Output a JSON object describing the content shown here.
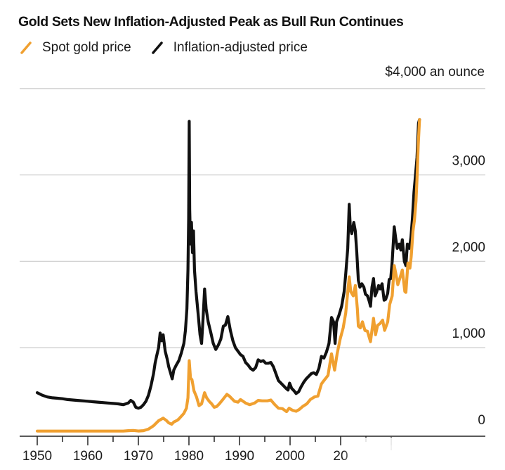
{
  "chart_data": {
    "type": "line",
    "title": "Gold Sets New Inflation-Adjusted Peak as Bull Run Continues",
    "unit_label": "$4,000 an ounce",
    "xlabel": "",
    "ylabel": "",
    "xlim": [
      1950,
      2025.7
    ],
    "ylim": [
      0,
      4000
    ],
    "grid": true,
    "legend_position": "top-left",
    "y_ticks": [
      {
        "value": 0,
        "label": "0"
      },
      {
        "value": 1000,
        "label": "1,000"
      },
      {
        "value": 2000,
        "label": "2,000"
      },
      {
        "value": 3000,
        "label": "3,000"
      },
      {
        "value": 4000,
        "label": ""
      }
    ],
    "x_ticks": [
      {
        "value": 1950,
        "label": "1950"
      },
      {
        "value": 1960,
        "label": "1960"
      },
      {
        "value": 1970,
        "label": "1970"
      },
      {
        "value": 1980,
        "label": "1980"
      },
      {
        "value": 1990,
        "label": "1990"
      },
      {
        "value": 2000,
        "label": "2000"
      },
      {
        "value": 2010,
        "label": "20"
      },
      {
        "value": 2020,
        "label": ""
      }
    ],
    "x_minor_ticks": [
      1955,
      1965,
      1975,
      1985,
      1995,
      2005,
      2015
    ],
    "series": [
      {
        "name": "Inflation-adjusted price",
        "color": "#111111",
        "points": [
          [
            1950,
            480
          ],
          [
            1951,
            450
          ],
          [
            1952,
            430
          ],
          [
            1953,
            420
          ],
          [
            1954,
            415
          ],
          [
            1955,
            410
          ],
          [
            1956,
            400
          ],
          [
            1957,
            395
          ],
          [
            1958,
            390
          ],
          [
            1959,
            385
          ],
          [
            1960,
            380
          ],
          [
            1961,
            375
          ],
          [
            1962,
            370
          ],
          [
            1963,
            365
          ],
          [
            1964,
            360
          ],
          [
            1965,
            355
          ],
          [
            1966,
            350
          ],
          [
            1967,
            340
          ],
          [
            1968,
            360
          ],
          [
            1968.5,
            390
          ],
          [
            1969,
            370
          ],
          [
            1969.5,
            310
          ],
          [
            1970,
            300
          ],
          [
            1970.5,
            310
          ],
          [
            1971,
            340
          ],
          [
            1971.5,
            380
          ],
          [
            1972,
            450
          ],
          [
            1972.5,
            560
          ],
          [
            1973,
            700
          ],
          [
            1973.3,
            820
          ],
          [
            1973.6,
            900
          ],
          [
            1974,
            1000
          ],
          [
            1974.3,
            1170
          ],
          [
            1974.6,
            1080
          ],
          [
            1974.9,
            1150
          ],
          [
            1975.3,
            960
          ],
          [
            1975.7,
            870
          ],
          [
            1976,
            780
          ],
          [
            1976.4,
            700
          ],
          [
            1976.7,
            640
          ],
          [
            1977,
            740
          ],
          [
            1977.5,
            800
          ],
          [
            1978,
            850
          ],
          [
            1978.5,
            940
          ],
          [
            1979,
            1050
          ],
          [
            1979.3,
            1200
          ],
          [
            1979.6,
            1450
          ],
          [
            1979.8,
            1900
          ],
          [
            1979.95,
            2500
          ],
          [
            1980.05,
            3620
          ],
          [
            1980.15,
            2600
          ],
          [
            1980.3,
            2200
          ],
          [
            1980.5,
            2450
          ],
          [
            1980.7,
            2100
          ],
          [
            1980.9,
            2350
          ],
          [
            1981.1,
            1900
          ],
          [
            1981.4,
            1650
          ],
          [
            1981.8,
            1400
          ],
          [
            1982.2,
            1150
          ],
          [
            1982.5,
            1050
          ],
          [
            1982.8,
            1350
          ],
          [
            1983.1,
            1680
          ],
          [
            1983.4,
            1450
          ],
          [
            1983.8,
            1300
          ],
          [
            1984.3,
            1180
          ],
          [
            1984.8,
            1050
          ],
          [
            1985.3,
            980
          ],
          [
            1985.8,
            1030
          ],
          [
            1986.3,
            1100
          ],
          [
            1986.8,
            1250
          ],
          [
            1987.2,
            1260
          ],
          [
            1987.7,
            1360
          ],
          [
            1988.2,
            1200
          ],
          [
            1988.7,
            1080
          ],
          [
            1989.2,
            1000
          ],
          [
            1989.7,
            960
          ],
          [
            1990.2,
            920
          ],
          [
            1990.7,
            900
          ],
          [
            1991.2,
            830
          ],
          [
            1991.7,
            800
          ],
          [
            1992.2,
            760
          ],
          [
            1992.7,
            740
          ],
          [
            1993.2,
            770
          ],
          [
            1993.7,
            860
          ],
          [
            1994.2,
            840
          ],
          [
            1994.7,
            850
          ],
          [
            1995.2,
            820
          ],
          [
            1995.7,
            820
          ],
          [
            1996.2,
            830
          ],
          [
            1996.7,
            780
          ],
          [
            1997.2,
            700
          ],
          [
            1997.7,
            620
          ],
          [
            1998.2,
            590
          ],
          [
            1998.7,
            560
          ],
          [
            1999.2,
            530
          ],
          [
            1999.6,
            510
          ],
          [
            1999.9,
            590
          ],
          [
            2000.3,
            530
          ],
          [
            2000.8,
            500
          ],
          [
            2001.2,
            470
          ],
          [
            2001.7,
            490
          ],
          [
            2002.2,
            550
          ],
          [
            2002.7,
            600
          ],
          [
            2003.2,
            640
          ],
          [
            2003.7,
            670
          ],
          [
            2004.2,
            700
          ],
          [
            2004.7,
            710
          ],
          [
            2005.2,
            690
          ],
          [
            2005.7,
            760
          ],
          [
            2006.2,
            900
          ],
          [
            2006.7,
            880
          ],
          [
            2007.2,
            950
          ],
          [
            2007.7,
            1050
          ],
          [
            2008.2,
            1350
          ],
          [
            2008.6,
            1300
          ],
          [
            2008.9,
            1050
          ],
          [
            2009.2,
            1300
          ],
          [
            2009.7,
            1380
          ],
          [
            2010.2,
            1480
          ],
          [
            2010.7,
            1650
          ],
          [
            2011.0,
            1850
          ],
          [
            2011.4,
            2150
          ],
          [
            2011.7,
            2660
          ],
          [
            2011.9,
            2400
          ],
          [
            2012.2,
            2320
          ],
          [
            2012.6,
            2450
          ],
          [
            2012.9,
            2350
          ],
          [
            2013.2,
            2100
          ],
          [
            2013.5,
            1780
          ],
          [
            2013.8,
            1700
          ],
          [
            2014.2,
            1740
          ],
          [
            2014.6,
            1700
          ],
          [
            2014.9,
            1620
          ],
          [
            2015.3,
            1600
          ],
          [
            2015.7,
            1530
          ],
          [
            2015.9,
            1480
          ],
          [
            2016.2,
            1700
          ],
          [
            2016.5,
            1800
          ],
          [
            2016.8,
            1600
          ],
          [
            2017.1,
            1640
          ],
          [
            2017.5,
            1720
          ],
          [
            2017.8,
            1680
          ],
          [
            2018.2,
            1740
          ],
          [
            2018.6,
            1550
          ],
          [
            2018.9,
            1560
          ],
          [
            2019.3,
            1630
          ],
          [
            2019.6,
            1790
          ],
          [
            2019.9,
            1800
          ],
          [
            2020.2,
            2000
          ],
          [
            2020.6,
            2400
          ],
          [
            2020.9,
            2260
          ],
          [
            2021.2,
            2150
          ],
          [
            2021.6,
            2200
          ],
          [
            2021.9,
            2130
          ],
          [
            2022.2,
            2250
          ],
          [
            2022.6,
            2000
          ],
          [
            2022.9,
            1950
          ],
          [
            2023.2,
            2200
          ],
          [
            2023.6,
            2150
          ],
          [
            2023.9,
            2280
          ],
          [
            2024.2,
            2500
          ],
          [
            2024.5,
            2800
          ],
          [
            2024.8,
            3000
          ],
          [
            2025.1,
            3200
          ],
          [
            2025.4,
            3600
          ],
          [
            2025.6,
            3640
          ]
        ]
      },
      {
        "name": "Spot gold price",
        "color": "#f0a030",
        "points": [
          [
            1950,
            35
          ],
          [
            1955,
            35
          ],
          [
            1960,
            35
          ],
          [
            1965,
            35
          ],
          [
            1967,
            35
          ],
          [
            1968,
            40
          ],
          [
            1969,
            42
          ],
          [
            1970,
            36
          ],
          [
            1971,
            40
          ],
          [
            1972,
            58
          ],
          [
            1973,
            97
          ],
          [
            1974,
            155
          ],
          [
            1974.9,
            185
          ],
          [
            1975.5,
            160
          ],
          [
            1976,
            130
          ],
          [
            1976.6,
            115
          ],
          [
            1977,
            140
          ],
          [
            1977.7,
            160
          ],
          [
            1978,
            175
          ],
          [
            1978.7,
            220
          ],
          [
            1979,
            240
          ],
          [
            1979.5,
            300
          ],
          [
            1979.8,
            420
          ],
          [
            1980.05,
            850
          ],
          [
            1980.3,
            650
          ],
          [
            1980.6,
            630
          ],
          [
            1981,
            500
          ],
          [
            1981.5,
            430
          ],
          [
            1982,
            330
          ],
          [
            1982.5,
            350
          ],
          [
            1983.1,
            480
          ],
          [
            1983.5,
            420
          ],
          [
            1984,
            380
          ],
          [
            1984.5,
            350
          ],
          [
            1985,
            310
          ],
          [
            1985.5,
            320
          ],
          [
            1986,
            350
          ],
          [
            1986.7,
            400
          ],
          [
            1987.5,
            460
          ],
          [
            1988,
            440
          ],
          [
            1988.5,
            410
          ],
          [
            1989,
            380
          ],
          [
            1989.7,
            370
          ],
          [
            1990.2,
            400
          ],
          [
            1990.7,
            380
          ],
          [
            1991.2,
            360
          ],
          [
            1992,
            340
          ],
          [
            1993,
            360
          ],
          [
            1993.7,
            390
          ],
          [
            1994.5,
            385
          ],
          [
            1995.5,
            385
          ],
          [
            1996.2,
            395
          ],
          [
            1997,
            340
          ],
          [
            1997.7,
            300
          ],
          [
            1998.5,
            295
          ],
          [
            1999.3,
            260
          ],
          [
            1999.8,
            300
          ],
          [
            2000.5,
            275
          ],
          [
            2001.2,
            265
          ],
          [
            2001.8,
            285
          ],
          [
            2002.5,
            320
          ],
          [
            2003.3,
            350
          ],
          [
            2004,
            400
          ],
          [
            2004.8,
            430
          ],
          [
            2005.5,
            440
          ],
          [
            2006.2,
            580
          ],
          [
            2006.7,
            620
          ],
          [
            2007.5,
            680
          ],
          [
            2008.2,
            930
          ],
          [
            2008.8,
            740
          ],
          [
            2009.3,
            930
          ],
          [
            2009.9,
            1100
          ],
          [
            2010.5,
            1230
          ],
          [
            2011.0,
            1400
          ],
          [
            2011.7,
            1820
          ],
          [
            2012.0,
            1650
          ],
          [
            2012.5,
            1600
          ],
          [
            2012.9,
            1720
          ],
          [
            2013.3,
            1450
          ],
          [
            2013.5,
            1250
          ],
          [
            2013.9,
            1230
          ],
          [
            2014.3,
            1300
          ],
          [
            2014.8,
            1200
          ],
          [
            2015.3,
            1190
          ],
          [
            2015.9,
            1070
          ],
          [
            2016.5,
            1340
          ],
          [
            2016.9,
            1150
          ],
          [
            2017.3,
            1260
          ],
          [
            2017.8,
            1280
          ],
          [
            2018.3,
            1320
          ],
          [
            2018.7,
            1200
          ],
          [
            2019.3,
            1300
          ],
          [
            2019.7,
            1500
          ],
          [
            2020.2,
            1600
          ],
          [
            2020.6,
            1950
          ],
          [
            2020.9,
            1860
          ],
          [
            2021.3,
            1730
          ],
          [
            2021.7,
            1800
          ],
          [
            2022.2,
            1900
          ],
          [
            2022.7,
            1650
          ],
          [
            2022.9,
            1640
          ],
          [
            2023.3,
            1980
          ],
          [
            2023.7,
            1920
          ],
          [
            2023.95,
            2050
          ],
          [
            2024.3,
            2350
          ],
          [
            2024.6,
            2480
          ],
          [
            2024.9,
            2700
          ],
          [
            2025.1,
            2950
          ],
          [
            2025.35,
            3350
          ],
          [
            2025.6,
            3640
          ]
        ]
      }
    ]
  },
  "legend": {
    "items": [
      {
        "label": "Spot gold price",
        "color": "#f0a030"
      },
      {
        "label": "Inflation-adjusted price",
        "color": "#111111"
      }
    ]
  }
}
